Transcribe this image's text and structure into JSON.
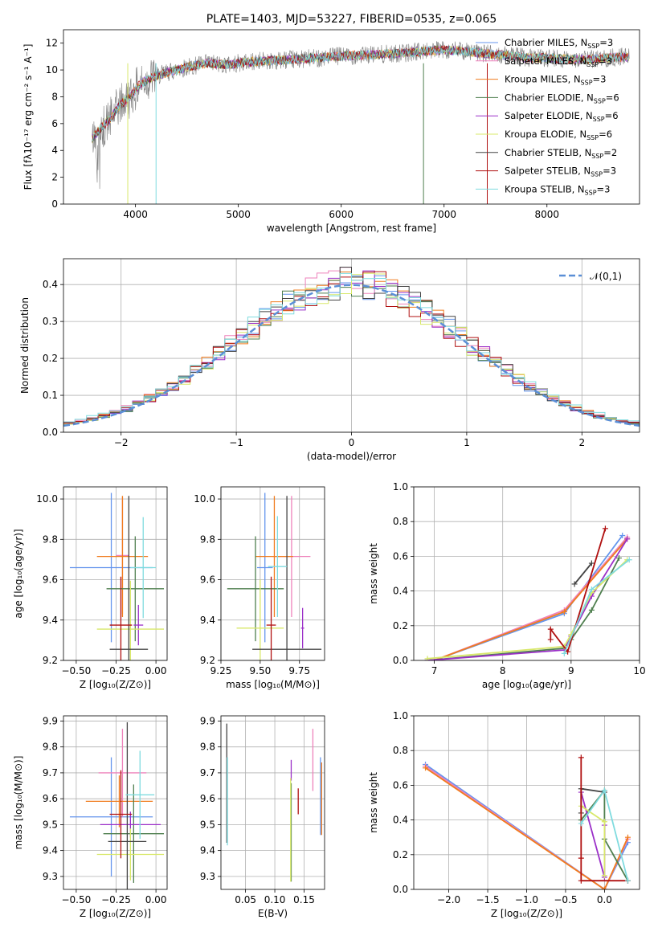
{
  "colors": {
    "chabrier_miles": "#6495ed",
    "salpeter_miles": "#ee82bb",
    "kroupa_miles": "#f07c1e",
    "chabrier_elodie": "#4f7f4f",
    "salpeter_elodie": "#9b30c8",
    "kroupa_elodie": "#d8e86a",
    "chabrier_stelib": "#444444",
    "salpeter_stelib": "#b01010",
    "kroupa_stelib": "#7fdbdf",
    "data": "#808080",
    "gaussian": "#5b8fd6"
  },
  "chart_data": [
    {
      "id": "spectrum",
      "type": "line",
      "title": "PLATE=1403, MJD=53227, FIBERID=0535, z=0.065",
      "xlabel": "wavelength [Angstrom, rest frame]",
      "ylabel": "Flux [fλ10⁻¹⁷ erg cm⁻² s⁻¹ A⁻¹]",
      "xlim": [
        3300,
        8900
      ],
      "ylim": [
        0,
        13
      ],
      "xticks": [
        4000,
        5000,
        6000,
        7000,
        8000
      ],
      "yticks": [
        0,
        2,
        4,
        6,
        8,
        10,
        12
      ],
      "legend_position": "upper-right",
      "legend": [
        {
          "key": "chabrier_miles",
          "label": "Chabrier MILES, N",
          "nssp": "=3"
        },
        {
          "key": "salpeter_miles",
          "label": "Salpeter MILES, N",
          "nssp": "=3"
        },
        {
          "key": "kroupa_miles",
          "label": "Kroupa MILES, N",
          "nssp": "=3"
        },
        {
          "key": "chabrier_elodie",
          "label": "Chabrier ELODIE, N",
          "nssp": "=6"
        },
        {
          "key": "salpeter_elodie",
          "label": "Salpeter ELODIE, N",
          "nssp": "=6"
        },
        {
          "key": "kroupa_elodie",
          "label": "Kroupa ELODIE, N",
          "nssp": "=6"
        },
        {
          "key": "chabrier_stelib",
          "label": "Chabrier STELIB, N",
          "nssp": "=2"
        },
        {
          "key": "salpeter_stelib",
          "label": "Salpeter STELIB, N",
          "nssp": "=3"
        },
        {
          "key": "kroupa_stelib",
          "label": "Kroupa STELIB, N",
          "nssp": "=3"
        }
      ],
      "legend_subscript": "SSP",
      "continuum": {
        "x": [
          3580,
          3650,
          3750,
          3850,
          3950,
          4050,
          4150,
          4300,
          4500,
          4700,
          4900,
          5100,
          5300,
          5600,
          5900,
          6200,
          6500,
          6800,
          7000,
          7200,
          7400,
          7600,
          7800,
          8000,
          8200,
          8400,
          8600,
          8800
        ],
        "y": [
          4.8,
          5.6,
          6.3,
          7.4,
          8.0,
          9.0,
          9.4,
          9.8,
          10.2,
          10.5,
          10.4,
          10.6,
          10.7,
          10.8,
          11.0,
          11.1,
          11.2,
          11.4,
          11.5,
          11.4,
          11.2,
          11.1,
          10.9,
          10.9,
          10.8,
          10.8,
          10.9,
          11.0
        ]
      }
    },
    {
      "id": "residuals",
      "type": "line",
      "title": "",
      "xlabel": "(data-model)/error",
      "ylabel": "Normed distribution",
      "xlim": [
        -2.5,
        2.5
      ],
      "ylim": [
        0,
        0.47
      ],
      "xticks": [
        -2,
        -1,
        0,
        1,
        2
      ],
      "yticks": [
        0.0,
        0.1,
        0.2,
        0.3,
        0.4
      ],
      "legend": "𝒩(0,1)",
      "legend_position": "upper-right"
    },
    {
      "id": "age_vs_Z",
      "type": "scatter",
      "xlabel": "Z [log₁₀(Z/Z⊙)]",
      "ylabel": "age  [log₁₀(age/yr)]",
      "xlim": [
        -0.58,
        0.07
      ],
      "ylim": [
        9.2,
        10.06
      ],
      "xticks": [
        -0.5,
        -0.25,
        0.0
      ],
      "yticks": [
        9.2,
        9.4,
        9.6,
        9.8,
        10.0
      ],
      "points": [
        {
          "key": "chabrier_miles",
          "x": -0.28,
          "xerr": 0.26,
          "y": 9.66,
          "yerr": 0.37
        },
        {
          "key": "salpeter_miles",
          "x": -0.21,
          "xerr": 0.04,
          "y": 9.72,
          "yerr": 0.29
        },
        {
          "key": "kroupa_miles",
          "x": -0.21,
          "xerr": 0.16,
          "y": 9.715,
          "yerr": 0.3
        },
        {
          "key": "chabrier_elodie",
          "x": -0.13,
          "xerr": 0.18,
          "y": 9.555,
          "yerr": 0.26
        },
        {
          "key": "salpeter_elodie",
          "x": -0.11,
          "xerr": 0.03,
          "y": 9.375,
          "yerr": 0.1
        },
        {
          "key": "kroupa_elodie",
          "x": -0.16,
          "xerr": 0.21,
          "y": 9.355,
          "yerr": 0.24
        },
        {
          "key": "chabrier_stelib",
          "x": -0.17,
          "xerr": 0.12,
          "y": 9.255,
          "yerr": 0.76
        },
        {
          "key": "salpeter_stelib",
          "x": -0.22,
          "xerr": 0.07,
          "y": 9.375,
          "yerr": 0.24
        },
        {
          "key": "kroupa_stelib",
          "x": -0.08,
          "xerr": 0.08,
          "y": 9.66,
          "yerr": 0.25
        }
      ]
    },
    {
      "id": "age_vs_mass",
      "type": "scatter",
      "xlabel": "mass [log₁₀(M/M⊙)]",
      "ylabel": "",
      "xlim": [
        9.25,
        9.91
      ],
      "ylim": [
        9.2,
        10.06
      ],
      "xticks": [
        9.25,
        9.5,
        9.75
      ],
      "yticks": [
        9.2,
        9.4,
        9.6,
        9.8,
        10.0
      ],
      "points": [
        {
          "key": "chabrier_miles",
          "x": 9.53,
          "xerr": 0.05,
          "y": 9.66,
          "yerr": 0.37
        },
        {
          "key": "salpeter_miles",
          "x": 9.7,
          "xerr": 0.12,
          "y": 9.715,
          "yerr": 0.3
        },
        {
          "key": "kroupa_miles",
          "x": 9.59,
          "xerr": 0.12,
          "y": 9.715,
          "yerr": 0.3
        },
        {
          "key": "chabrier_elodie",
          "x": 9.47,
          "xerr": 0.18,
          "y": 9.555,
          "yerr": 0.26
        },
        {
          "key": "salpeter_elodie",
          "x": 9.77,
          "xerr": 0.01,
          "y": 9.36,
          "yerr": 0.1
        },
        {
          "key": "kroupa_elodie",
          "x": 9.5,
          "xerr": 0.15,
          "y": 9.36,
          "yerr": 0.24
        },
        {
          "key": "chabrier_stelib",
          "x": 9.67,
          "xerr": 0.22,
          "y": 9.255,
          "yerr": 0.76
        },
        {
          "key": "salpeter_stelib",
          "x": 9.57,
          "xerr": 0.03,
          "y": 9.375,
          "yerr": 0.24
        },
        {
          "key": "kroupa_stelib",
          "x": 9.61,
          "xerr": 0.06,
          "y": 9.665,
          "yerr": 0.25
        }
      ]
    },
    {
      "id": "weight_vs_age",
      "type": "line",
      "xlabel": "age  [log₁₀(age/yr)]",
      "ylabel": "mass weight",
      "xlim": [
        6.7,
        10.0
      ],
      "ylim": [
        0,
        1.0
      ],
      "xticks": [
        7,
        8,
        9,
        10
      ],
      "yticks": [
        0.0,
        0.2,
        0.4,
        0.6,
        0.8,
        1.0
      ],
      "series": [
        {
          "key": "chabrier_miles",
          "x": [
            7.0,
            8.9,
            9.75
          ],
          "y": [
            0.0,
            0.27,
            0.72
          ]
        },
        {
          "key": "salpeter_miles",
          "x": [
            7.0,
            8.9,
            9.82
          ],
          "y": [
            0.0,
            0.29,
            0.71
          ]
        },
        {
          "key": "kroupa_miles",
          "x": [
            7.0,
            8.9,
            9.82
          ],
          "y": [
            0.0,
            0.28,
            0.7
          ]
        },
        {
          "key": "chabrier_elodie",
          "x": [
            6.9,
            8.9,
            9.0,
            9.3,
            9.7
          ],
          "y": [
            0.0,
            0.07,
            0.12,
            0.29,
            0.59
          ]
        },
        {
          "key": "salpeter_elodie",
          "x": [
            6.9,
            8.9,
            9.0,
            9.3,
            9.82
          ],
          "y": [
            0.0,
            0.06,
            0.14,
            0.37,
            0.7
          ]
        },
        {
          "key": "kroupa_elodie",
          "x": [
            6.9,
            8.9,
            9.0,
            9.3,
            9.82
          ],
          "y": [
            0.01,
            0.08,
            0.15,
            0.39,
            0.58
          ]
        },
        {
          "key": "chabrier_stelib",
          "x": [
            9.05,
            9.3
          ],
          "y": [
            0.44,
            0.56
          ]
        },
        {
          "key": "salpeter_stelib",
          "x": [
            8.7,
            8.7,
            8.95,
            9.5
          ],
          "y": [
            0.12,
            0.18,
            0.05,
            0.76
          ]
        },
        {
          "key": "kroupa_stelib",
          "x": [
            8.9,
            9.3,
            9.85
          ],
          "y": [
            0.04,
            0.41,
            0.58
          ]
        }
      ]
    },
    {
      "id": "mass_vs_Z",
      "type": "scatter",
      "xlabel": "Z [log₁₀(Z/Z⊙)]",
      "ylabel": "mass [log₁₀(M/M⊙)]",
      "xlim": [
        -0.58,
        0.07
      ],
      "ylim": [
        9.25,
        9.92
      ],
      "xticks": [
        -0.5,
        -0.25,
        0.0
      ],
      "yticks": [
        9.3,
        9.4,
        9.5,
        9.6,
        9.7,
        9.8,
        9.9
      ],
      "points": [
        {
          "key": "chabrier_miles",
          "x": -0.28,
          "xerr": 0.26,
          "y": 9.53,
          "yerr": 0.23
        },
        {
          "key": "salpeter_miles",
          "x": -0.21,
          "xerr": 0.15,
          "y": 9.7,
          "yerr": 0.17
        },
        {
          "key": "kroupa_miles",
          "x": -0.23,
          "xerr": 0.21,
          "y": 9.59,
          "yerr": 0.1
        },
        {
          "key": "chabrier_elodie",
          "x": -0.14,
          "xerr": 0.19,
          "y": 9.465,
          "yerr": 0.19
        },
        {
          "key": "salpeter_elodie",
          "x": -0.16,
          "xerr": 0.19,
          "y": 9.5,
          "yerr": 0.05
        },
        {
          "key": "kroupa_elodie",
          "x": -0.16,
          "xerr": 0.21,
          "y": 9.385,
          "yerr": 0.1
        },
        {
          "key": "chabrier_stelib",
          "x": -0.18,
          "xerr": 0.12,
          "y": 9.435,
          "yerr": 0.46
        },
        {
          "key": "salpeter_stelib",
          "x": -0.22,
          "xerr": 0.07,
          "y": 9.54,
          "yerr": 0.17
        },
        {
          "key": "kroupa_stelib",
          "x": -0.1,
          "xerr": 0.09,
          "y": 9.615,
          "yerr": 0.17
        }
      ]
    },
    {
      "id": "mass_vs_ebv",
      "type": "scatter",
      "xlabel": "E(B-V)",
      "ylabel": "",
      "xlim": [
        0.008,
        0.185
      ],
      "ylim": [
        9.25,
        9.92
      ],
      "xticks": [
        0.05,
        0.1,
        0.15
      ],
      "yticks": [
        9.3,
        9.4,
        9.5,
        9.6,
        9.7,
        9.8,
        9.9
      ],
      "points": [
        {
          "key": "chabrier_miles",
          "x": 0.178,
          "xerr": 0,
          "y": 9.61,
          "yerr": 0.15
        },
        {
          "key": "salpeter_miles",
          "x": 0.165,
          "xerr": 0,
          "y": 9.75,
          "yerr": 0.12
        },
        {
          "key": "kroupa_miles",
          "x": 0.18,
          "xerr": 0,
          "y": 9.6,
          "yerr": 0.14
        },
        {
          "key": "chabrier_elodie",
          "x": 0.128,
          "xerr": 0,
          "y": 9.47,
          "yerr": 0.19
        },
        {
          "key": "salpeter_elodie",
          "x": 0.128,
          "xerr": 0,
          "y": 9.71,
          "yerr": 0.04
        },
        {
          "key": "kroupa_elodie",
          "x": 0.127,
          "xerr": 0,
          "y": 9.48,
          "yerr": 0.2
        },
        {
          "key": "chabrier_stelib",
          "x": 0.018,
          "xerr": 0,
          "y": 9.66,
          "yerr": 0.23
        },
        {
          "key": "salpeter_stelib",
          "x": 0.14,
          "xerr": 0,
          "y": 9.59,
          "yerr": 0.05
        },
        {
          "key": "kroupa_stelib",
          "x": 0.019,
          "xerr": 0,
          "y": 9.59,
          "yerr": 0.17
        }
      ]
    },
    {
      "id": "weight_vs_Z",
      "type": "line",
      "xlabel": "Z [log₁₀(Z/Z⊙)]",
      "ylabel": "mass weight",
      "xlim": [
        -2.45,
        0.45
      ],
      "ylim": [
        0,
        1.0
      ],
      "xticks": [
        -2.0,
        -1.5,
        -1.0,
        -0.5,
        0.0
      ],
      "yticks": [
        0.0,
        0.2,
        0.4,
        0.6,
        0.8,
        1.0
      ],
      "series": [
        {
          "key": "chabrier_miles",
          "x": [
            -2.3,
            0.0,
            0.3
          ],
          "y": [
            0.72,
            0.0,
            0.27
          ]
        },
        {
          "key": "salpeter_miles",
          "x": [
            -2.3,
            0.0,
            0.3
          ],
          "y": [
            0.71,
            0.0,
            0.29
          ]
        },
        {
          "key": "kroupa_miles",
          "x": [
            -2.3,
            0.0,
            0.3
          ],
          "y": [
            0.7,
            0.0,
            0.3
          ]
        },
        {
          "key": "chabrier_elodie",
          "x": [
            -0.3,
            0.0,
            0.0,
            0.3
          ],
          "y": [
            0.4,
            0.57,
            0.29,
            0.05
          ]
        },
        {
          "key": "salpeter_elodie",
          "x": [
            -0.3,
            0.0,
            0.0
          ],
          "y": [
            0.56,
            0.07,
            0.37
          ]
        },
        {
          "key": "kroupa_elodie",
          "x": [
            -0.3,
            0.0,
            0.0
          ],
          "y": [
            0.48,
            0.39,
            0.08
          ]
        },
        {
          "key": "chabrier_stelib",
          "x": [
            -0.3,
            -0.3,
            0.0
          ],
          "y": [
            0.44,
            0.58,
            0.56
          ]
        },
        {
          "key": "salpeter_stelib",
          "x": [
            -0.3,
            -0.3,
            -0.3,
            0.3
          ],
          "y": [
            0.18,
            0.76,
            0.05,
            0.05
          ]
        },
        {
          "key": "kroupa_stelib",
          "x": [
            -0.3,
            0.0,
            0.3
          ],
          "y": [
            0.38,
            0.57,
            0.05
          ]
        }
      ]
    }
  ]
}
